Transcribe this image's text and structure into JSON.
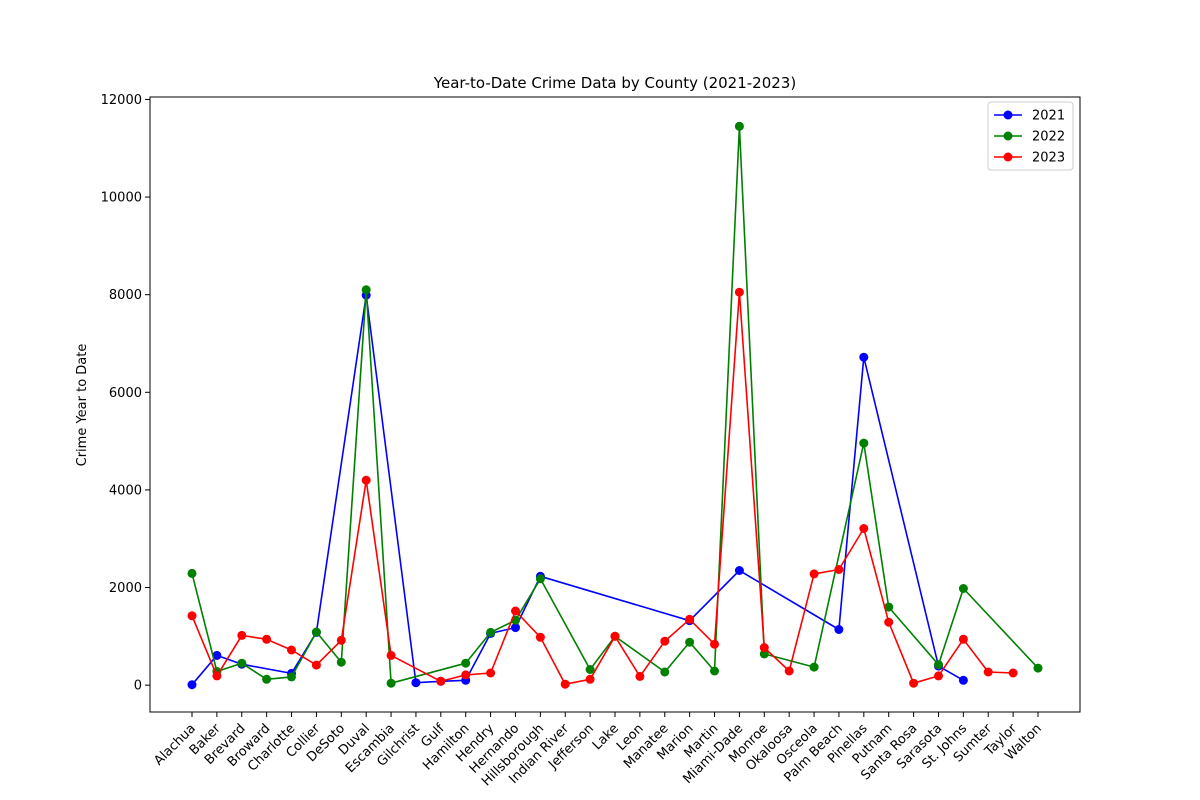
{
  "chart_data": {
    "type": "line",
    "title": "Year-to-Date Crime Data by County (2021-2023)",
    "xlabel": "",
    "ylabel": "Crime Year to Date",
    "ylim": [
      -550,
      12050
    ],
    "yticks": [
      0,
      2000,
      4000,
      6000,
      8000,
      10000,
      12000
    ],
    "grid": false,
    "legend_position": "top-right",
    "categories": [
      "Alachua",
      "Baker",
      "Brevard",
      "Broward",
      "Charlotte",
      "Collier",
      "DeSoto",
      "Duval",
      "Escambia",
      "Gilchrist",
      "Gulf",
      "Hamilton",
      "Hendry",
      "Hernando",
      "Hillsborough",
      "Indian River",
      "Jefferson",
      "Lake",
      "Leon",
      "Manatee",
      "Marion",
      "Martin",
      "Miami-Dade",
      "Monroe",
      "Okaloosa",
      "Osceola",
      "Palm Beach",
      "Pinellas",
      "Putnam",
      "Santa Rosa",
      "Sarasota",
      "St. Johns",
      "Sumter",
      "Taylor",
      "Walton"
    ],
    "series": [
      {
        "name": "2021",
        "color": "#0000ff",
        "marker": "circle",
        "values": [
          10,
          610,
          430,
          null,
          240,
          1080,
          null,
          7990,
          null,
          50,
          80,
          100,
          1060,
          1180,
          2230,
          null,
          null,
          null,
          null,
          null,
          1320,
          null,
          2350,
          null,
          null,
          null,
          1140,
          6720,
          null,
          null,
          390,
          100,
          null,
          null,
          null
        ]
      },
      {
        "name": "2022",
        "color": "#008000",
        "marker": "circle",
        "values": [
          2290,
          280,
          450,
          120,
          170,
          1090,
          470,
          8100,
          40,
          null,
          null,
          450,
          1080,
          1330,
          2180,
          null,
          320,
          1000,
          null,
          270,
          880,
          290,
          11450,
          640,
          null,
          370,
          null,
          4960,
          1600,
          null,
          420,
          1980,
          null,
          null,
          350
        ]
      },
      {
        "name": "2023",
        "color": "#ff0000",
        "marker": "circle",
        "values": [
          1420,
          190,
          1020,
          940,
          720,
          410,
          920,
          4200,
          610,
          null,
          80,
          210,
          250,
          1520,
          980,
          20,
          120,
          1000,
          180,
          900,
          1350,
          840,
          8050,
          770,
          290,
          2280,
          2370,
          3210,
          1290,
          40,
          190,
          940,
          270,
          250,
          null
        ]
      }
    ]
  }
}
